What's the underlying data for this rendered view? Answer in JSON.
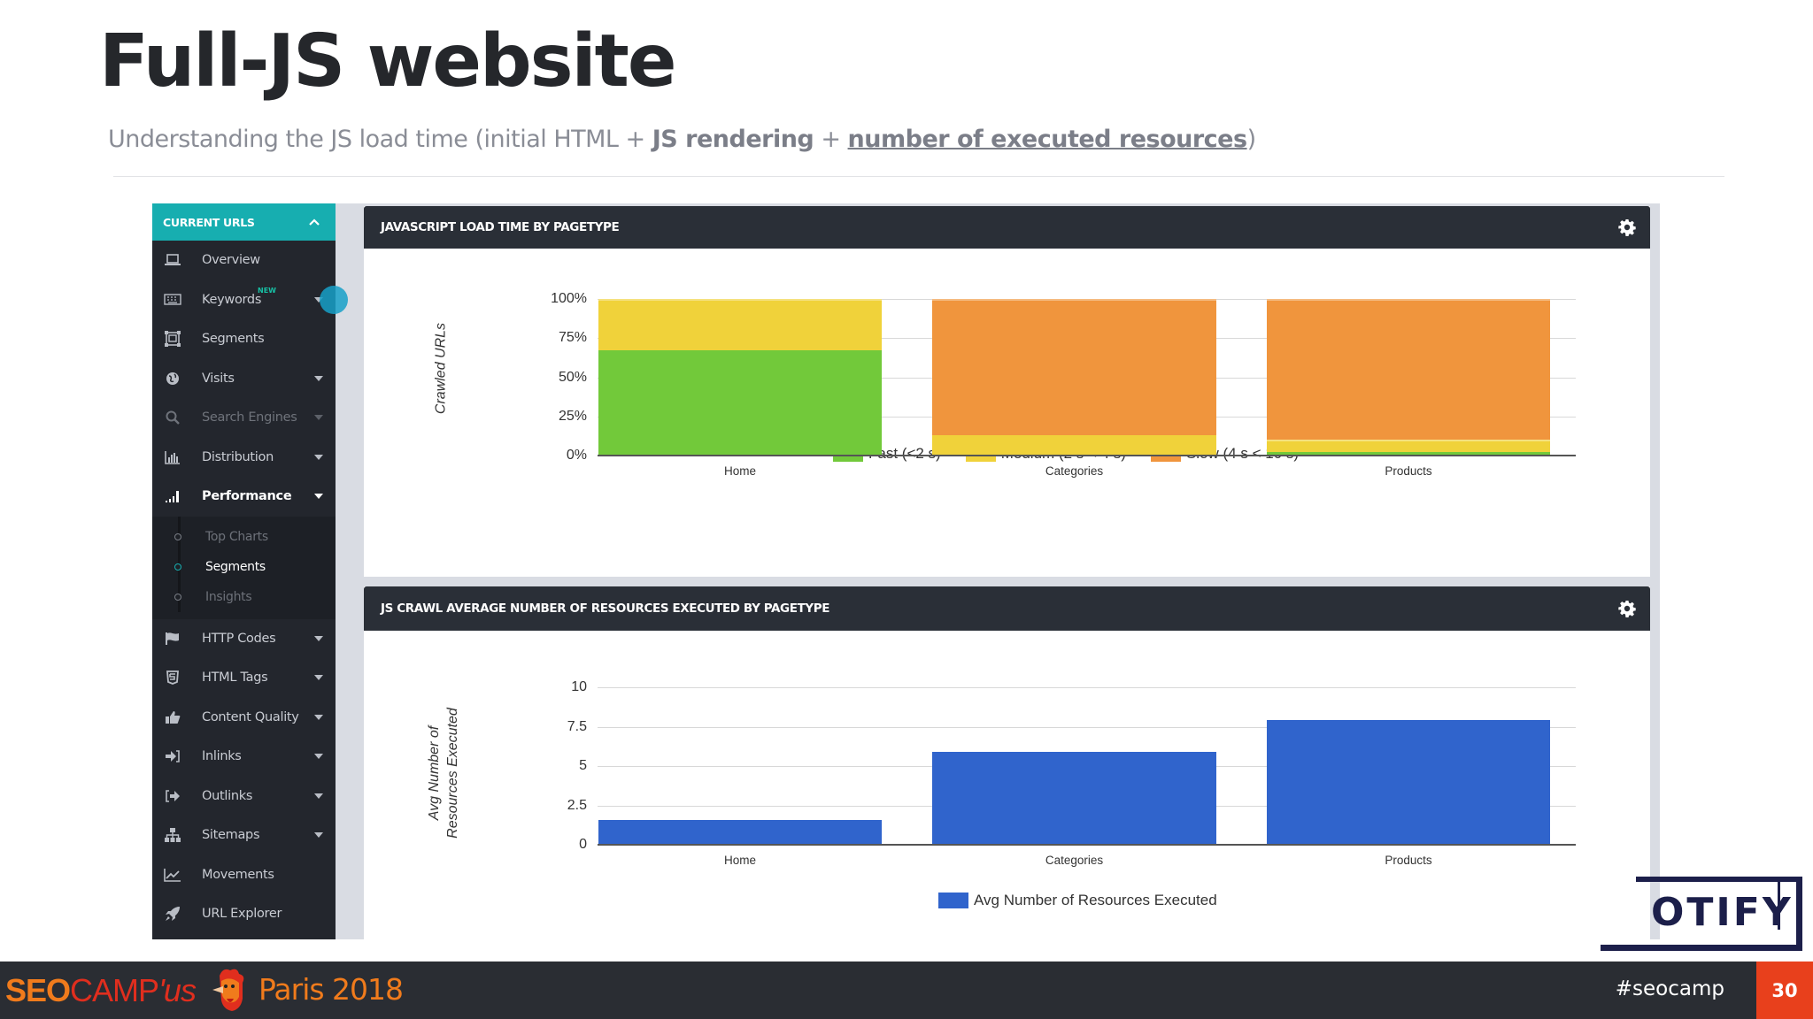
{
  "slide": {
    "title": "Full-JS website",
    "subtitle": {
      "prefix": "Understanding the JS load time (initial HTML + ",
      "bold": "JS rendering",
      "mid": " + ",
      "underlined": "number of executed resources",
      "suffix": ")"
    }
  },
  "sidebar": {
    "header": "CURRENT URLS",
    "items": [
      {
        "label": "Overview",
        "icon": "laptop-icon",
        "caret": false
      },
      {
        "label": "Keywords",
        "icon": "keyboard-icon",
        "caret": true,
        "badge": "NEW"
      },
      {
        "label": "Segments",
        "icon": "segments-icon",
        "caret": false
      },
      {
        "label": "Visits",
        "icon": "globe-icon",
        "caret": true
      },
      {
        "label": "Search Engines",
        "icon": "search-icon",
        "caret": true
      },
      {
        "label": "Distribution",
        "icon": "bar-chart-icon",
        "caret": true
      },
      {
        "label": "Performance",
        "icon": "signal-icon",
        "caret": true
      }
    ],
    "submenu": [
      {
        "label": "Top Charts"
      },
      {
        "label": "Segments"
      },
      {
        "label": "Insights"
      }
    ],
    "items_after": [
      {
        "label": "HTTP Codes",
        "icon": "flag-icon",
        "caret": true
      },
      {
        "label": "HTML Tags",
        "icon": "html5-icon",
        "caret": true
      },
      {
        "label": "Content Quality",
        "icon": "thumbs-up-icon",
        "caret": true
      },
      {
        "label": "Inlinks",
        "icon": "sign-in-icon",
        "caret": true
      },
      {
        "label": "Outlinks",
        "icon": "sign-out-icon",
        "caret": true
      },
      {
        "label": "Sitemaps",
        "icon": "sitemap-icon",
        "caret": true
      },
      {
        "label": "Movements",
        "icon": "line-chart-icon",
        "caret": false
      },
      {
        "label": "URL Explorer",
        "icon": "rocket-icon",
        "caret": false
      }
    ]
  },
  "panels": [
    {
      "title": "JAVASCRIPT LOAD TIME BY PAGETYPE"
    },
    {
      "title": "JS CRAWL AVERAGE NUMBER OF RESOURCES EXECUTED BY PAGETYPE"
    }
  ],
  "colors": {
    "fast": "#72c93a",
    "medium": "#f0d23a",
    "slow": "#f0953d",
    "blue": "#3064cc",
    "teal": "#17aeb0",
    "page_num_bg": "#e8401c"
  },
  "chart_data": [
    {
      "type": "bar",
      "stacked": true,
      "title": "JAVASCRIPT LOAD TIME BY PAGETYPE",
      "xlabel": "",
      "ylabel": "Crawled URLs",
      "categories": [
        "Home",
        "Categories",
        "Products"
      ],
      "yticks": [
        "0%",
        "25%",
        "50%",
        "75%",
        "100%"
      ],
      "ylim": [
        0,
        100
      ],
      "series": [
        {
          "name": "Fast (<2 s)",
          "values": [
            67,
            0,
            2.5
          ]
        },
        {
          "name": "Medium (2 s < 4 s)",
          "values": [
            33,
            13,
            7.5
          ]
        },
        {
          "name": "Slow (4 s < 10 s)",
          "values": [
            0,
            87,
            90
          ]
        }
      ],
      "legend_position": "bottom",
      "grid": true
    },
    {
      "type": "bar",
      "title": "JS CRAWL AVERAGE NUMBER OF RESOURCES EXECUTED BY PAGETYPE",
      "xlabel": "",
      "ylabel": "Avg Number of Resources Executed",
      "ylabel_lines": [
        "Avg Number of",
        "Resources Executed"
      ],
      "categories": [
        "Home",
        "Categories",
        "Products"
      ],
      "yticks": [
        "0",
        "2.5",
        "5",
        "7.5",
        "10"
      ],
      "ylim": [
        0,
        10
      ],
      "series": [
        {
          "name": "Avg Number of Resources Executed",
          "values": [
            1.6,
            5.9,
            7.9
          ]
        }
      ],
      "legend_position": "bottom",
      "grid": true
    }
  ],
  "logo": {
    "text": "OTIFY"
  },
  "footer": {
    "brand_seo": "SEO",
    "brand_camp": "CAMP",
    "brand_us": "'us",
    "city": "Paris 2018",
    "hashtag": "#seocamp",
    "page_number": "30"
  }
}
